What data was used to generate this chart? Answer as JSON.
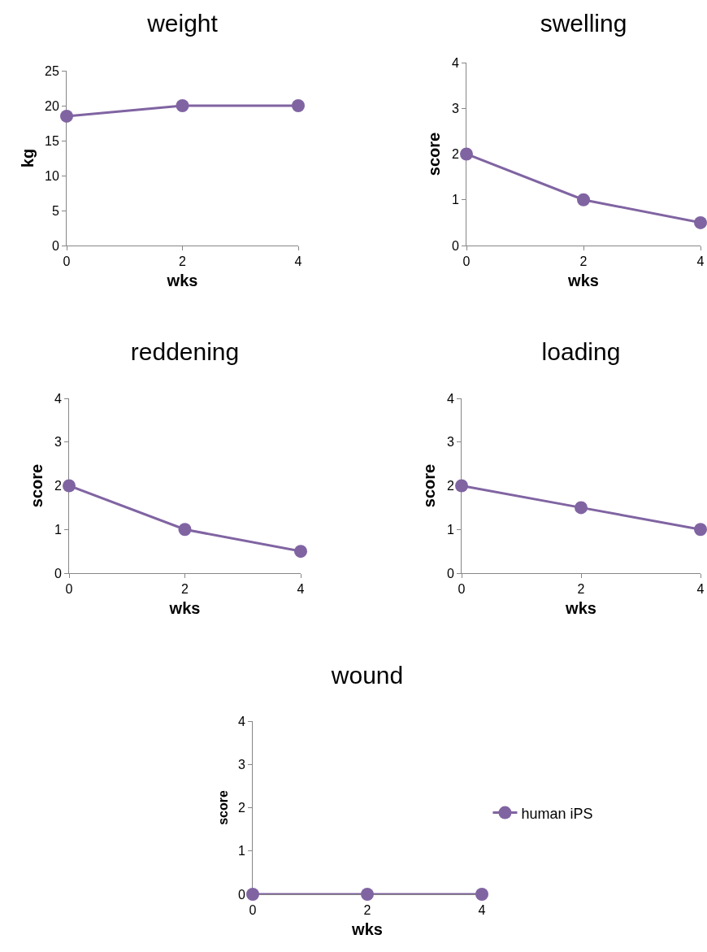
{
  "chart_data": [
    {
      "type": "line",
      "title": "weight",
      "xlabel": "wks",
      "ylabel": "kg",
      "x": [
        0,
        2,
        4
      ],
      "series": [
        {
          "color": "#8064a2",
          "values": [
            18.5,
            20,
            20
          ]
        }
      ],
      "xlim": [
        0,
        4
      ],
      "xticks": [
        0,
        2,
        4
      ],
      "ylim": [
        0,
        25
      ],
      "yticks": [
        0,
        5,
        10,
        15,
        20,
        25
      ],
      "grid": false,
      "legend": false,
      "marker": "circle",
      "line_style": "solid"
    },
    {
      "type": "line",
      "title": "swelling",
      "xlabel": "wks",
      "ylabel": "score",
      "x": [
        0,
        2,
        4
      ],
      "series": [
        {
          "color": "#8064a2",
          "values": [
            2,
            1,
            0.5
          ]
        }
      ],
      "xlim": [
        0,
        4
      ],
      "xticks": [
        0,
        2,
        4
      ],
      "ylim": [
        0,
        4
      ],
      "yticks": [
        0,
        1,
        2,
        3,
        4
      ],
      "grid": false,
      "legend": false,
      "marker": "circle",
      "line_style": "solid"
    },
    {
      "type": "line",
      "title": "reddening",
      "xlabel": "wks",
      "ylabel": "score",
      "x": [
        0,
        2,
        4
      ],
      "series": [
        {
          "color": "#8064a2",
          "values": [
            2,
            1,
            0.5
          ]
        }
      ],
      "xlim": [
        0,
        4
      ],
      "xticks": [
        0,
        2,
        4
      ],
      "ylim": [
        0,
        4
      ],
      "yticks": [
        0,
        1,
        2,
        3,
        4
      ],
      "grid": false,
      "legend": false,
      "marker": "circle",
      "line_style": "solid"
    },
    {
      "type": "line",
      "title": "loading",
      "xlabel": "wks",
      "ylabel": "score",
      "x": [
        0,
        2,
        4
      ],
      "series": [
        {
          "color": "#8064a2",
          "values": [
            2,
            1.5,
            1
          ]
        }
      ],
      "xlim": [
        0,
        4
      ],
      "xticks": [
        0,
        2,
        4
      ],
      "ylim": [
        0,
        4
      ],
      "yticks": [
        0,
        1,
        2,
        3,
        4
      ],
      "grid": false,
      "legend": false,
      "marker": "circle",
      "line_style": "solid"
    },
    {
      "type": "line",
      "title": "wound",
      "xlabel": "wks",
      "ylabel": "score",
      "x": [
        0,
        2,
        4
      ],
      "series": [
        {
          "name": "human iPS",
          "color": "#8064a2",
          "values": [
            0,
            0,
            0
          ]
        }
      ],
      "xlim": [
        0,
        4
      ],
      "xticks": [
        0,
        2,
        4
      ],
      "ylim": [
        0,
        4
      ],
      "yticks": [
        0,
        1,
        2,
        3,
        4
      ],
      "grid": false,
      "legend": "right",
      "marker": "circle",
      "line_style": "solid"
    }
  ]
}
